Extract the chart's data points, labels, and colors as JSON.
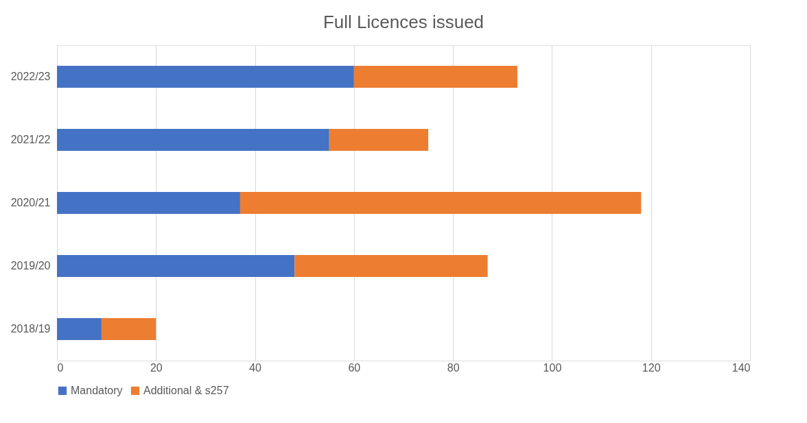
{
  "chart_data": {
    "type": "bar",
    "orientation": "horizontal",
    "stacked": true,
    "title": "Full Licences issued",
    "categories": [
      "2022/23",
      "2021/22",
      "2020/21",
      "2019/20",
      "2018/19"
    ],
    "series": [
      {
        "name": "Mandatory",
        "color": "#4472c4",
        "values": [
          60,
          55,
          37,
          48,
          9
        ]
      },
      {
        "name": "Additional & s257",
        "color": "#ed7d31",
        "values": [
          33,
          20,
          81,
          39,
          11
        ]
      }
    ],
    "xlim": [
      0,
      140
    ],
    "xticks": [
      0,
      20,
      40,
      60,
      80,
      100,
      120,
      140
    ],
    "grid": "x",
    "legend": "bottom"
  }
}
